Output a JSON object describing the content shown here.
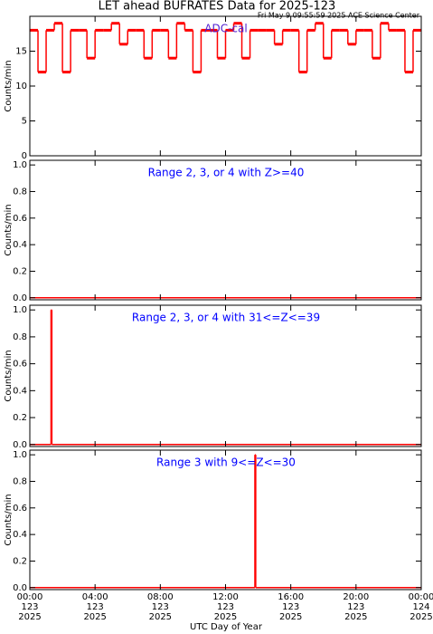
{
  "title": "LET ahead BUFRATES Data for 2025-123",
  "timestamp": "Fri May  9 09:55:59 2025 ACE Science Center",
  "xaxis": {
    "label": "UTC Day of Year",
    "xlim": [
      0,
      24
    ],
    "xticks": [
      {
        "value": 0,
        "label": [
          "00:00",
          "123",
          "2025"
        ]
      },
      {
        "value": 4,
        "label": [
          "04:00",
          "123",
          "2025"
        ]
      },
      {
        "value": 8,
        "label": [
          "08:00",
          "123",
          "2025"
        ]
      },
      {
        "value": 12,
        "label": [
          "12:00",
          "123",
          "2025"
        ]
      },
      {
        "value": 16,
        "label": [
          "16:00",
          "123",
          "2025"
        ]
      },
      {
        "value": 20,
        "label": [
          "20:00",
          "123",
          "2025"
        ]
      },
      {
        "value": 24,
        "label": [
          "00:00",
          "124",
          "2025"
        ]
      }
    ]
  },
  "chart_data": [
    {
      "type": "step",
      "annotation": "ADC-cal",
      "annotation_color": "#5020d0",
      "ylabel": "Counts/min",
      "color": "#ff0000",
      "ylim": [
        0,
        20
      ],
      "yticks": [
        0,
        5,
        10,
        15
      ],
      "x": [
        0,
        0.5,
        1,
        1.5,
        2,
        2.5,
        3,
        3.5,
        4,
        4.5,
        5,
        5.5,
        6,
        6.5,
        7,
        7.5,
        8,
        8.5,
        9,
        9.5,
        10,
        10.5,
        11,
        11.5,
        12,
        12.5,
        13,
        13.5,
        14,
        14.5,
        15,
        15.5,
        16,
        16.5,
        17,
        17.5,
        18,
        18.5,
        19,
        19.5,
        20,
        20.5,
        21,
        21.5,
        22,
        22.5,
        23,
        23.5
      ],
      "values": [
        18,
        12,
        18,
        19,
        12,
        18,
        18,
        14,
        18,
        18,
        19,
        16,
        18,
        18,
        14,
        18,
        18,
        14,
        19,
        18,
        12,
        18,
        18,
        14,
        18,
        19,
        14,
        18,
        18,
        18,
        16,
        18,
        18,
        12,
        18,
        19,
        14,
        18,
        18,
        16,
        18,
        18,
        14,
        19,
        18,
        18,
        12,
        18
      ]
    },
    {
      "type": "step",
      "annotation": "Range 2, 3, or 4 with Z>=40",
      "annotation_color": "#0000ff",
      "ylabel": "Counts/min",
      "color": "#ff0000",
      "ylim": [
        -0.015,
        1.035
      ],
      "yticks": [
        {
          "value": 0,
          "label": "0.0"
        },
        {
          "value": 0.2,
          "label": "0.2"
        },
        {
          "value": 0.4,
          "label": "0.4"
        },
        {
          "value": 0.6,
          "label": "0.6"
        },
        {
          "value": 0.8,
          "label": "0.8"
        },
        {
          "value": 1,
          "label": "1.0"
        }
      ],
      "x": [
        0
      ],
      "values": [
        0
      ]
    },
    {
      "type": "step",
      "annotation": "Range 2, 3, or 4 with 31<=Z<=39",
      "annotation_color": "#0000ff",
      "ylabel": "Counts/min",
      "color": "#ff0000",
      "ylim": [
        -0.015,
        1.035
      ],
      "yticks": [
        {
          "value": 0,
          "label": "0.0"
        },
        {
          "value": 0.2,
          "label": "0.2"
        },
        {
          "value": 0.4,
          "label": "0.4"
        },
        {
          "value": 0.6,
          "label": "0.6"
        },
        {
          "value": 0.8,
          "label": "0.8"
        },
        {
          "value": 1,
          "label": "1.0"
        }
      ],
      "x": [
        0,
        1.3,
        1.35
      ],
      "values": [
        0,
        1,
        0
      ]
    },
    {
      "type": "step",
      "annotation": "Range 3 with 9<=Z<=30",
      "annotation_color": "#0000ff",
      "ylabel": "Counts/min",
      "color": "#ff0000",
      "ylim": [
        -0.015,
        1.035
      ],
      "yticks": [
        {
          "value": 0,
          "label": "0.0"
        },
        {
          "value": 0.2,
          "label": "0.2"
        },
        {
          "value": 0.4,
          "label": "0.4"
        },
        {
          "value": 0.6,
          "label": "0.6"
        },
        {
          "value": 0.8,
          "label": "0.8"
        },
        {
          "value": 1,
          "label": "1.0"
        }
      ],
      "x": [
        0,
        13.8,
        13.85
      ],
      "values": [
        0,
        1,
        0
      ]
    }
  ]
}
